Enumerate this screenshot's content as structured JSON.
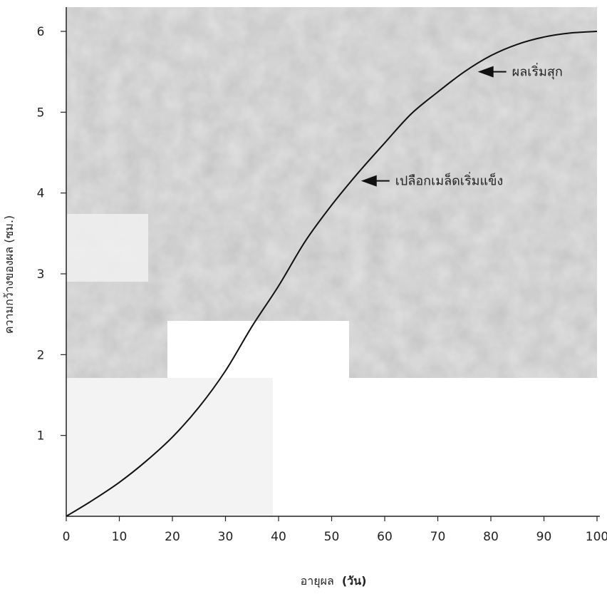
{
  "chart_data": {
    "type": "line",
    "xlabel": "อายุผล",
    "xlabel_unit": "(วัน)",
    "ylabel": "ความกว้างของผล (ซม.)",
    "xlim": [
      0,
      100
    ],
    "ylim": [
      0,
      6
    ],
    "x_ticks": [
      "0",
      "10",
      "20",
      "30",
      "40",
      "50",
      "60",
      "70",
      "80",
      "90",
      "100"
    ],
    "y_ticks": [
      "1",
      "2",
      "3",
      "4",
      "5",
      "6"
    ],
    "grid": false,
    "series": [
      {
        "x": [
          0,
          5,
          10,
          15,
          20,
          25,
          30,
          35,
          40,
          45,
          50,
          55,
          60,
          65,
          70,
          75,
          80,
          85,
          90,
          95,
          100
        ],
        "y": [
          0,
          0.2,
          0.42,
          0.68,
          0.98,
          1.35,
          1.8,
          2.35,
          2.85,
          3.4,
          3.85,
          4.25,
          4.62,
          4.98,
          5.25,
          5.5,
          5.7,
          5.84,
          5.93,
          5.98,
          6.0
        ]
      }
    ],
    "annotations": [
      {
        "text": "ผลเริ่มสุก",
        "x": 77,
        "y": 5.5
      },
      {
        "text": "เปลือกเมล็ดเริ่มแข็ง",
        "x": 55,
        "y": 4.15
      }
    ]
  }
}
